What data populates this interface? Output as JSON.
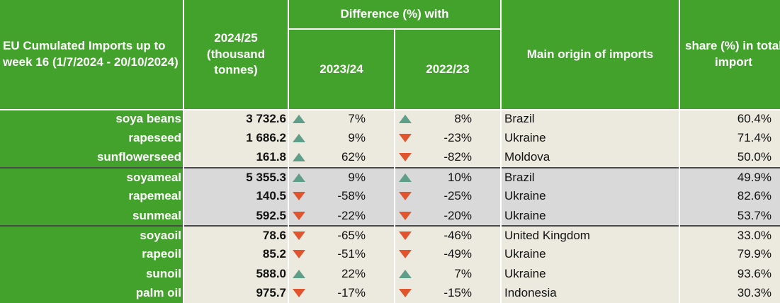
{
  "header": {
    "title": "EU Cumulated Imports up to week 16 (1/7/2024 - 20/10/2024)",
    "value_col": "2024/25 (thousand tonnes)",
    "diff_col": "Difference (%) with",
    "year1": "2023/24",
    "year2": "2022/23",
    "origin_col": "Main origin of imports",
    "share_col": "share (%) in total import"
  },
  "colors": {
    "green": "#43a22b",
    "up": "#5f9e88",
    "down": "#e0542e",
    "group1": "#ece9de",
    "group2": "#d9d9d9"
  },
  "rows": [
    {
      "name": "soya beans",
      "value": "3 732.6",
      "d1": "7%",
      "d1_dir": "up",
      "d2": "8%",
      "d2_dir": "up",
      "origin": "Brazil",
      "share": "60.4%"
    },
    {
      "name": "rapeseed",
      "value": "1 686.2",
      "d1": "9%",
      "d1_dir": "up",
      "d2": "-23%",
      "d2_dir": "down",
      "origin": "Ukraine",
      "share": "71.4%"
    },
    {
      "name": "sunflowerseed",
      "value": "161.8",
      "d1": "62%",
      "d1_dir": "up",
      "d2": "-82%",
      "d2_dir": "down",
      "origin": "Moldova",
      "share": "50.0%"
    },
    {
      "name": "soyameal",
      "value": "5 355.3",
      "d1": "9%",
      "d1_dir": "up",
      "d2": "10%",
      "d2_dir": "up",
      "origin": "Brazil",
      "share": "49.9%"
    },
    {
      "name": "rapemeal",
      "value": "140.5",
      "d1": "-58%",
      "d1_dir": "down",
      "d2": "-25%",
      "d2_dir": "down",
      "origin": "Ukraine",
      "share": "82.6%"
    },
    {
      "name": "sunmeal",
      "value": "592.5",
      "d1": "-22%",
      "d1_dir": "down",
      "d2": "-20%",
      "d2_dir": "down",
      "origin": "Ukraine",
      "share": "53.7%"
    },
    {
      "name": "soyaoil",
      "value": "78.6",
      "d1": "-65%",
      "d1_dir": "down",
      "d2": "-46%",
      "d2_dir": "down",
      "origin": "United Kingdom",
      "share": "33.0%"
    },
    {
      "name": "rapeoil",
      "value": "85.2",
      "d1": "-51%",
      "d1_dir": "down",
      "d2": "-49%",
      "d2_dir": "down",
      "origin": "Ukraine",
      "share": "79.9%"
    },
    {
      "name": "sunoil",
      "value": "588.0",
      "d1": "22%",
      "d1_dir": "up",
      "d2": "7%",
      "d2_dir": "up",
      "origin": "Ukraine",
      "share": "93.6%"
    },
    {
      "name": "palm oil",
      "value": "975.7",
      "d1": "-17%",
      "d1_dir": "down",
      "d2": "-15%",
      "d2_dir": "down",
      "origin": "Indonesia",
      "share": "30.3%"
    }
  ]
}
